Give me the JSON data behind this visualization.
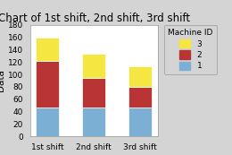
{
  "categories": [
    "1st shift",
    "2nd shift",
    "3rd shift"
  ],
  "machine1": [
    47,
    47,
    47
  ],
  "machine2": [
    75,
    47,
    33
  ],
  "machine3": [
    38,
    40,
    33
  ],
  "colors": {
    "machine1": "#7bafd4",
    "machine2": "#b93535",
    "machine3": "#f5e642"
  },
  "title": "Chart of 1st shift, 2nd shift, 3rd shift",
  "ylabel": "Data",
  "ylim": [
    0,
    180
  ],
  "yticks": [
    0,
    20,
    40,
    60,
    80,
    100,
    120,
    140,
    160,
    180
  ],
  "legend_title": "Machine ID",
  "background_color": "#d4d4d4",
  "plot_bg_color": "#ffffff",
  "title_fontsize": 8.5,
  "axis_fontsize": 7.5,
  "tick_fontsize": 6.5,
  "legend_fontsize": 6.5,
  "bar_width": 0.5
}
